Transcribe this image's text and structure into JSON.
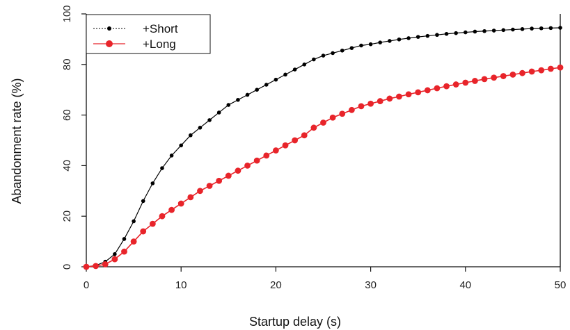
{
  "chart_data": {
    "type": "line",
    "title": "",
    "xlabel": "Startup delay (s)",
    "ylabel": "Abandonment rate (%)",
    "xlim": [
      0,
      50
    ],
    "ylim": [
      0,
      100
    ],
    "xticks": [
      "0",
      "10",
      "20",
      "30",
      "40",
      "50"
    ],
    "yticks": [
      "0",
      "20",
      "40",
      "60",
      "80",
      "100"
    ],
    "grid": false,
    "legend_position": "top-left",
    "series": [
      {
        "name": "+Short",
        "color": "#000000",
        "marker": "small-dot",
        "x": [
          0,
          1,
          2,
          3,
          4,
          5,
          6,
          7,
          8,
          9,
          10,
          11,
          12,
          13,
          14,
          15,
          16,
          17,
          18,
          19,
          20,
          21,
          22,
          23,
          24,
          25,
          26,
          27,
          28,
          29,
          30,
          31,
          32,
          33,
          34,
          35,
          36,
          37,
          38,
          39,
          40,
          41,
          42,
          43,
          44,
          45,
          46,
          47,
          48,
          49,
          50
        ],
        "values": [
          0,
          0.5,
          2,
          5,
          11,
          18,
          26,
          33,
          39,
          44,
          48,
          52,
          55,
          58,
          61,
          64,
          66,
          68,
          70,
          72,
          74,
          76,
          78,
          80,
          82,
          83.5,
          84.5,
          85.5,
          86.5,
          87.5,
          88,
          88.7,
          89.3,
          89.9,
          90.4,
          90.9,
          91.3,
          91.7,
          92.1,
          92.4,
          92.7,
          93,
          93.2,
          93.4,
          93.6,
          93.8,
          94,
          94.2,
          94.3,
          94.4,
          94.5
        ]
      },
      {
        "name": "+Long",
        "color": "#e8242a",
        "marker": "large-dot",
        "x": [
          0,
          1,
          2,
          3,
          4,
          5,
          6,
          7,
          8,
          9,
          10,
          11,
          12,
          13,
          14,
          15,
          16,
          17,
          18,
          19,
          20,
          21,
          22,
          23,
          24,
          25,
          26,
          27,
          28,
          29,
          30,
          31,
          32,
          33,
          34,
          35,
          36,
          37,
          38,
          39,
          40,
          41,
          42,
          43,
          44,
          45,
          46,
          47,
          48,
          49,
          50
        ],
        "values": [
          0,
          0.3,
          1,
          3,
          6,
          10,
          14,
          17,
          20,
          22.5,
          25,
          27.5,
          30,
          32,
          34,
          36,
          38,
          40,
          42,
          44,
          46,
          48,
          50,
          52,
          55,
          57,
          59,
          60.5,
          62,
          63.5,
          64.5,
          65.5,
          66.5,
          67.3,
          68.2,
          69,
          69.8,
          70.6,
          71.4,
          72.1,
          72.8,
          73.5,
          74.2,
          74.8,
          75.4,
          76,
          76.6,
          77.2,
          77.7,
          78.3,
          78.8
        ]
      }
    ]
  }
}
